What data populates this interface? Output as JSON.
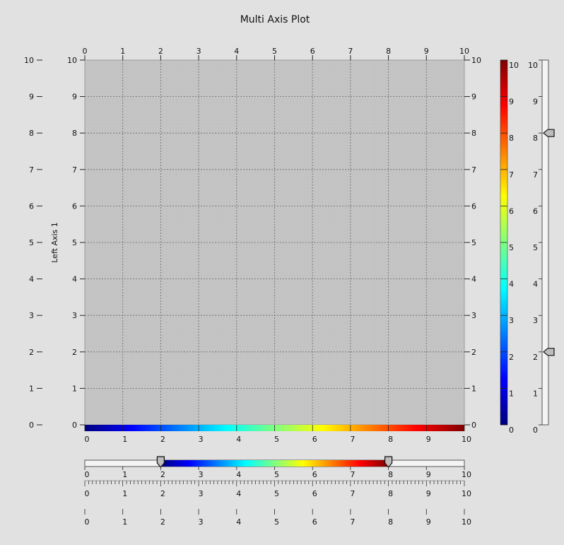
{
  "chart_data": {
    "type": "heatmap",
    "title": "Multi Axis Plot",
    "ylabel": "Left Axis 1",
    "xlabel": "",
    "xlim": [
      0,
      10
    ],
    "ylim": [
      0,
      10
    ],
    "grid": true,
    "ticks": [
      "0",
      "1",
      "2",
      "3",
      "4",
      "5",
      "6",
      "7",
      "8",
      "9",
      "10"
    ],
    "colorscale": {
      "name": "jet",
      "range": [
        0,
        10
      ],
      "stops": [
        "#00007f",
        "#0000ff",
        "#007fff",
        "#00ffff",
        "#7fff7f",
        "#ffff00",
        "#ff7f00",
        "#ff0000",
        "#7f0000"
      ]
    },
    "bottom_range_slider": {
      "range": [
        0,
        10
      ],
      "low": 2,
      "high": 8
    },
    "right_range_slider": {
      "range": [
        0,
        10
      ],
      "low": 2,
      "high": 8
    },
    "plot_background": "#c4c4c4",
    "page_background": "#e1e1e1"
  }
}
